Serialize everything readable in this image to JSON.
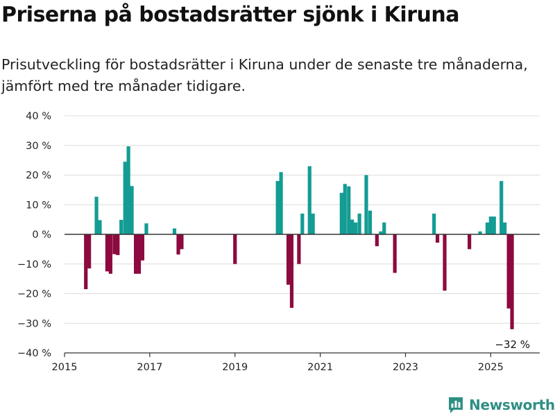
{
  "title": "Priserna på bostadsrätter sjönk i Kiruna",
  "subtitle": "Prisutveckling för bostadsrätter i Kiruna under de senaste tre månaderna, jämfört med tre månader tidigare.",
  "brand": {
    "name": "Newsworthy",
    "icon": "newsworthy-logo-icon"
  },
  "colors": {
    "positive": "#139c94",
    "negative": "#8c0a3f",
    "grid": "#dcdcdc",
    "axis": "#333333",
    "brand": "#2f8f83"
  },
  "chart_data": {
    "type": "bar",
    "title": "Priserna på bostadsrätter sjönk i Kiruna",
    "subtitle": "Prisutveckling för bostadsrätter i Kiruna under de senaste tre månaderna, jämfört med tre månader tidigare.",
    "xlabel": "",
    "ylabel": "",
    "x_ticks": [
      "2015",
      "2017",
      "2019",
      "2021",
      "2023",
      "2025"
    ],
    "x_tick_values": [
      2015,
      2017,
      2019,
      2021,
      2023,
      2025
    ],
    "xlim": [
      2015,
      2026.15
    ],
    "y_ticks": [
      "40 %",
      "30 %",
      "20 %",
      "10 %",
      "0 %",
      "−10 %",
      "−20 %",
      "−30 %",
      "−40 %"
    ],
    "y_tick_values": [
      40,
      30,
      20,
      10,
      0,
      -10,
      -20,
      -30,
      -40
    ],
    "ylim": [
      -40,
      40
    ],
    "grid": true,
    "legend": "none",
    "annotations": [
      {
        "text": "−32 %",
        "x": 2025.5,
        "y": -32
      }
    ],
    "bars": [
      {
        "x": 2015.5,
        "y": -18.5
      },
      {
        "x": 2015.58,
        "y": -11.5
      },
      {
        "x": 2015.75,
        "y": 12.7
      },
      {
        "x": 2015.83,
        "y": 4.8
      },
      {
        "x": 2016.0,
        "y": -12.5
      },
      {
        "x": 2016.08,
        "y": -13.3
      },
      {
        "x": 2016.17,
        "y": -6.7
      },
      {
        "x": 2016.25,
        "y": -7.0
      },
      {
        "x": 2016.33,
        "y": 4.9
      },
      {
        "x": 2016.42,
        "y": 24.5
      },
      {
        "x": 2016.5,
        "y": 29.7
      },
      {
        "x": 2016.58,
        "y": 16.3
      },
      {
        "x": 2016.67,
        "y": -13.3
      },
      {
        "x": 2016.75,
        "y": -13.3
      },
      {
        "x": 2016.83,
        "y": -8.8
      },
      {
        "x": 2016.92,
        "y": 3.7
      },
      {
        "x": 2017.58,
        "y": 2.0
      },
      {
        "x": 2017.67,
        "y": -6.8
      },
      {
        "x": 2017.75,
        "y": -5.0
      },
      {
        "x": 2019.0,
        "y": -10.0
      },
      {
        "x": 2020.0,
        "y": 18.0
      },
      {
        "x": 2020.08,
        "y": 21.0
      },
      {
        "x": 2020.25,
        "y": -17.0
      },
      {
        "x": 2020.33,
        "y": -24.8
      },
      {
        "x": 2020.5,
        "y": -10.0
      },
      {
        "x": 2020.58,
        "y": 7.0
      },
      {
        "x": 2020.75,
        "y": 23.0
      },
      {
        "x": 2020.83,
        "y": 7.0
      },
      {
        "x": 2021.5,
        "y": 14.0
      },
      {
        "x": 2021.58,
        "y": 17.0
      },
      {
        "x": 2021.67,
        "y": 16.2
      },
      {
        "x": 2021.75,
        "y": 5.0
      },
      {
        "x": 2021.83,
        "y": 4.0
      },
      {
        "x": 2021.92,
        "y": 7.0
      },
      {
        "x": 2022.08,
        "y": 20.0
      },
      {
        "x": 2022.17,
        "y": 8.0
      },
      {
        "x": 2022.33,
        "y": -4.0
      },
      {
        "x": 2022.42,
        "y": 1.0
      },
      {
        "x": 2022.5,
        "y": 4.0
      },
      {
        "x": 2022.75,
        "y": -13.0
      },
      {
        "x": 2023.67,
        "y": 7.0
      },
      {
        "x": 2023.75,
        "y": -2.8
      },
      {
        "x": 2023.92,
        "y": -19.0
      },
      {
        "x": 2024.5,
        "y": -5.0
      },
      {
        "x": 2024.75,
        "y": 1.0
      },
      {
        "x": 2024.92,
        "y": 4.0
      },
      {
        "x": 2025.0,
        "y": 6.0
      },
      {
        "x": 2025.08,
        "y": 6.0
      },
      {
        "x": 2025.25,
        "y": 18.0
      },
      {
        "x": 2025.33,
        "y": 4.0
      },
      {
        "x": 2025.42,
        "y": -25.0
      },
      {
        "x": 2025.5,
        "y": -32.0
      }
    ]
  }
}
